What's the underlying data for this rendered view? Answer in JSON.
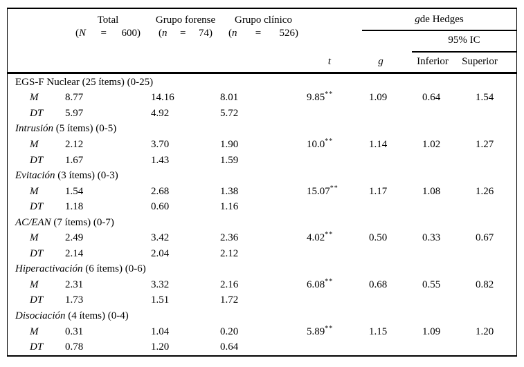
{
  "header": {
    "groups": [
      {
        "title": "Total",
        "open": "(",
        "symbol": "N",
        "equals": "=",
        "close": "600)"
      },
      {
        "title": "Grupo forense",
        "open": "(",
        "symbol": "n",
        "equals": "=",
        "close": "74)"
      },
      {
        "title": "Grupo clínico",
        "open": "(",
        "symbol": "n",
        "equals": "=",
        "close": "526)"
      }
    ],
    "hedges_g": "g",
    "hedges_rest": " de Hedges",
    "ci_label": "95% IC",
    "t_label": "t",
    "g_label": "g",
    "inferior_label": "Inferior",
    "superior_label": "Superior"
  },
  "sections": [
    {
      "label_italic": "",
      "label_roman": "EGS-F Nuclear (25 ítems) (0-25)",
      "rows": [
        {
          "stat": "M",
          "total": "8.77",
          "forense": "14.16",
          "clinico": "8.01",
          "t": "9.85",
          "t_sup": "**",
          "g": "1.09",
          "inferior": "0.64",
          "superior": "1.54"
        },
        {
          "stat": "DT",
          "total": "5.97",
          "forense": "4.92",
          "clinico": "5.72"
        }
      ]
    },
    {
      "label_italic": "Intrusión",
      "label_roman": " (5 ítems) (0-5)",
      "rows": [
        {
          "stat": "M",
          "total": "2.12",
          "forense": "3.70",
          "clinico": "1.90",
          "t": "10.0",
          "t_sup": "**",
          "g": "1.14",
          "inferior": "1.02",
          "superior": "1.27"
        },
        {
          "stat": "DT",
          "total": "1.67",
          "forense": "1.43",
          "clinico": "1.59"
        }
      ]
    },
    {
      "label_italic": "Evitación",
      "label_roman": " (3 ítems) (0-3)",
      "rows": [
        {
          "stat": "M",
          "total": "1.54",
          "forense": "2.68",
          "clinico": "1.38",
          "t": "15.07",
          "t_sup": "**",
          "g": "1.17",
          "inferior": "1.08",
          "superior": "1.26"
        },
        {
          "stat": "DT",
          "total": "1.18",
          "forense": "0.60",
          "clinico": "1.16"
        }
      ]
    },
    {
      "label_italic": "AC/EAN",
      "label_roman": " (7 ítems) (0-7)",
      "rows": [
        {
          "stat": "M",
          "total": "2.49",
          "forense": "3.42",
          "clinico": "2.36",
          "t": "4.02",
          "t_sup": "**",
          "g": "0.50",
          "inferior": "0.33",
          "superior": "0.67"
        },
        {
          "stat": "DT",
          "total": "2.14",
          "forense": "2.04",
          "clinico": "2.12"
        }
      ]
    },
    {
      "label_italic": "Hiperactivación",
      "label_roman": " (6 ítems) (0-6)",
      "rows": [
        {
          "stat": "M",
          "total": "2.31",
          "forense": "3.32",
          "clinico": "2.16",
          "t": "6.08",
          "t_sup": "**",
          "g": "0.68",
          "inferior": "0.55",
          "superior": "0.82"
        },
        {
          "stat": "DT",
          "total": "1.73",
          "forense": "1.51",
          "clinico": "1.72"
        }
      ]
    },
    {
      "label_italic": "Disociación",
      "label_roman": " (4 ítems) (0-4)",
      "rows": [
        {
          "stat": "M",
          "total": "0.31",
          "forense": "1.04",
          "clinico": "0.20",
          "t": "5.89",
          "t_sup": "**",
          "g": "1.15",
          "inferior": "1.09",
          "superior": "1.20"
        },
        {
          "stat": "DT",
          "total": "0.78",
          "forense": "1.20",
          "clinico": "0.64"
        }
      ]
    }
  ]
}
